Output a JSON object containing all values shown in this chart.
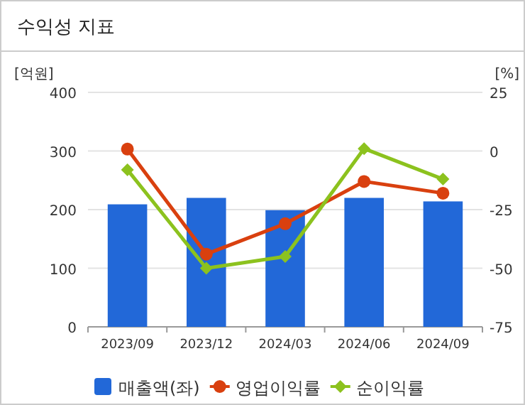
{
  "chart_data": {
    "type": "bar",
    "title": "수익성 지표",
    "ylabel": "[억원]",
    "y2label": "[%]",
    "categories": [
      "2023/09",
      "2023/12",
      "2024/03",
      "2024/06",
      "2024/09"
    ],
    "series": [
      {
        "name": "매출액(좌)",
        "color": "#2268d8",
        "values": [
          209,
          220,
          199,
          220,
          214
        ]
      },
      {
        "name": "영업이익률",
        "type": "line",
        "axis": "y2",
        "marker": "circle",
        "color": "#d9400f",
        "values": [
          0.8,
          -44,
          -31,
          -13,
          -18
        ]
      },
      {
        "name": "순이익률",
        "type": "line",
        "axis": "y2",
        "marker": "diamond",
        "color": "#8cc21e",
        "values": [
          -8,
          -50,
          -45,
          1,
          -12
        ]
      }
    ],
    "ylim": [
      0,
      400
    ],
    "yticks": [
      0,
      100,
      200,
      300,
      400
    ],
    "y2lim": [
      -75,
      25
    ],
    "y2ticks": [
      -75,
      -50,
      -25,
      0,
      25
    ],
    "grid": "y",
    "legend": "bottom"
  }
}
